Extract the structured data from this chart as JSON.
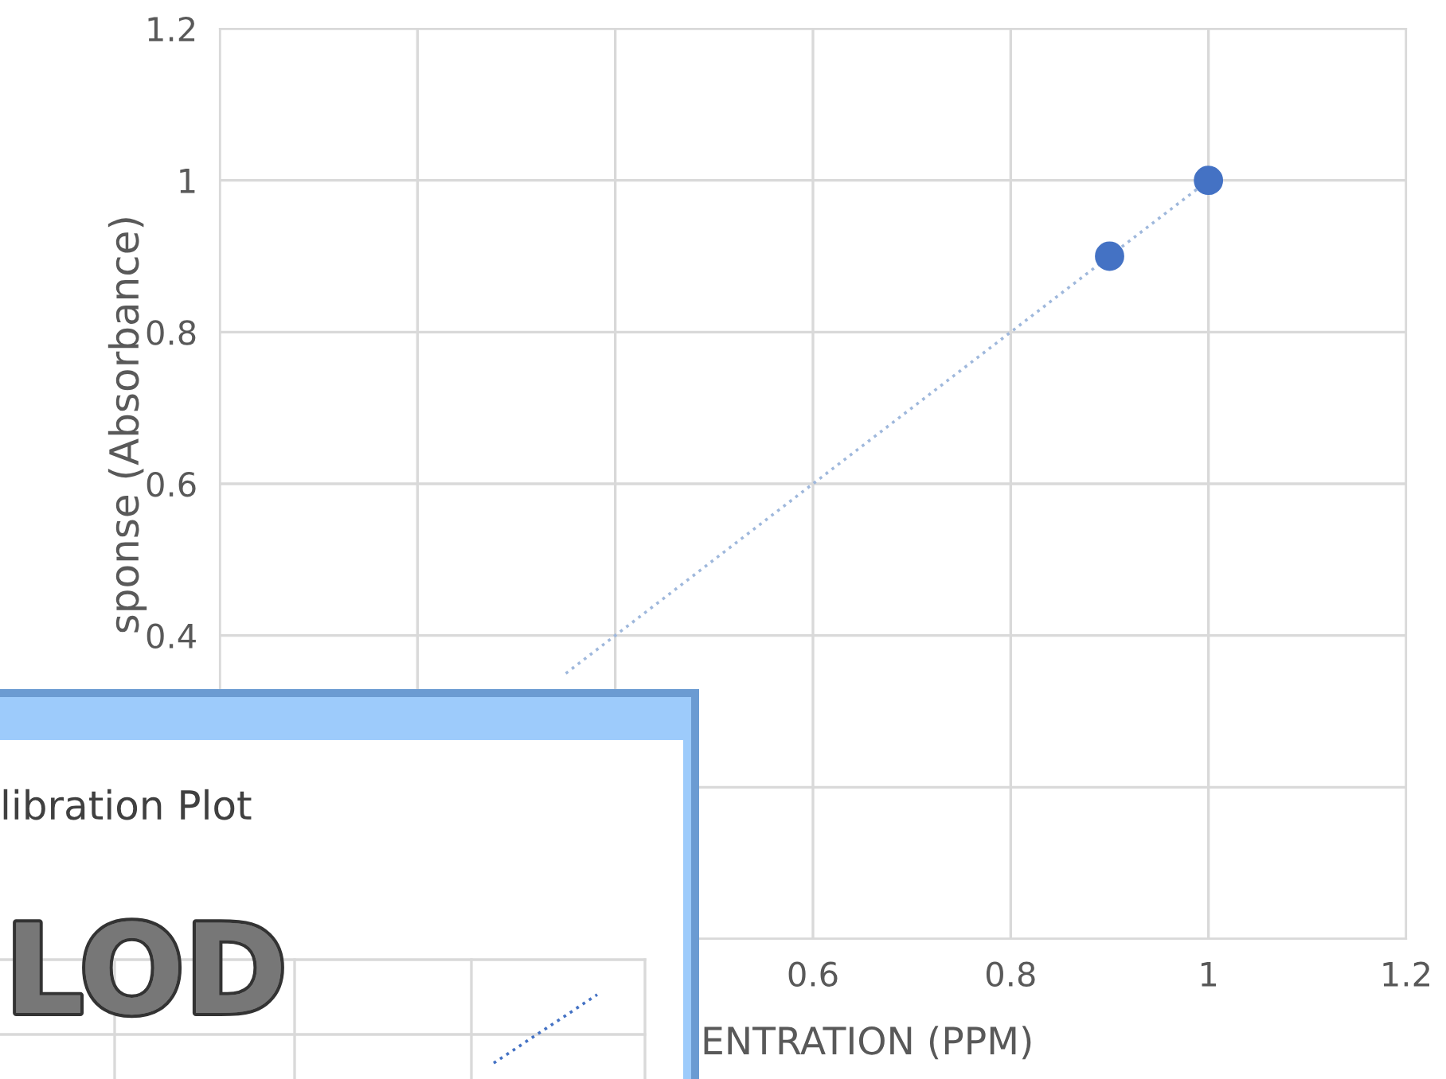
{
  "chart_data": {
    "type": "scatter",
    "xlabel": "ENTRATION (PPM)",
    "ylabel": "sponse (Absorbance)",
    "xlim": [
      0,
      1.2
    ],
    "ylim": [
      0,
      1.2
    ],
    "xticks": [
      {
        "value": 0,
        "label": null
      },
      {
        "value": 0.2,
        "label": null
      },
      {
        "value": 0.4,
        "label": null
      },
      0.6,
      0.8,
      1,
      1.2
    ],
    "yticks": [
      {
        "value": 0,
        "label": null
      },
      {
        "value": 0.2,
        "label": null
      },
      0.4,
      0.6,
      0.8,
      1,
      1.2
    ],
    "grid": true,
    "series": [
      {
        "color": "#4472c4",
        "marker": "circle",
        "x": [
          0.9,
          1
        ],
        "values": [
          0.9,
          1
        ]
      },
      {
        "type": "line",
        "color": "#9fb8dc",
        "line_style": "dotted",
        "x": [
          0.35,
          1
        ],
        "values": [
          0.35,
          1
        ]
      }
    ],
    "annotations": [
      "libration Plot",
      "LOD"
    ]
  }
}
